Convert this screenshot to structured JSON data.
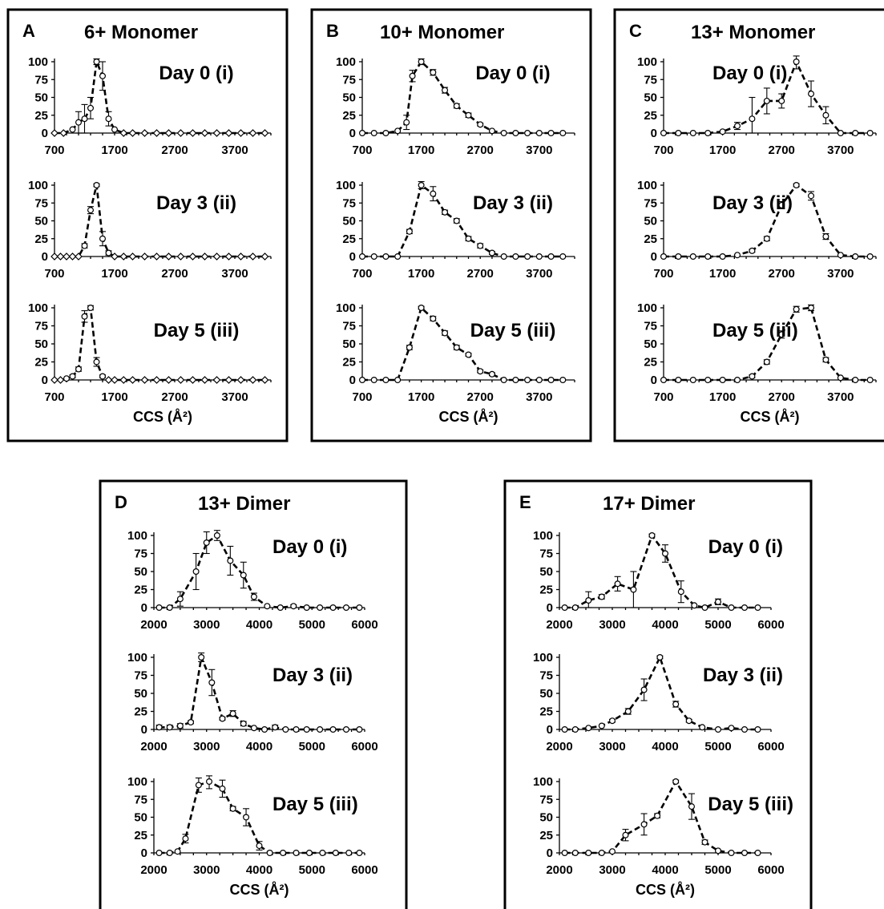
{
  "xlabel": "CCS (Å²)",
  "chart_data": [
    {
      "panel": "A",
      "title": "6+ Monomer",
      "type": "line",
      "ylim": [
        0,
        100
      ],
      "yticks": [
        0,
        25,
        50,
        75,
        100
      ],
      "xlim": [
        700,
        4300
      ],
      "xticks": [
        700,
        1700,
        2700,
        3700
      ],
      "xlabel": "CCS (Å²)",
      "subplots": [
        {
          "label": "Day 0 (i)",
          "x": [
            700,
            850,
            1000,
            1100,
            1200,
            1300,
            1400,
            1500,
            1600,
            1700,
            1850,
            2000,
            2200,
            2400,
            2600,
            2800,
            3000,
            3200,
            3400,
            3600,
            3800,
            4000,
            4200
          ],
          "y": [
            0,
            0,
            5,
            15,
            20,
            35,
            100,
            80,
            20,
            5,
            0,
            0,
            0,
            0,
            0,
            0,
            0,
            0,
            0,
            0,
            0,
            0,
            0
          ],
          "err": [
            0,
            0,
            0,
            15,
            20,
            15,
            4,
            20,
            10,
            0,
            0,
            0,
            0,
            0,
            0,
            0,
            0,
            0,
            0,
            0,
            0,
            0,
            0
          ]
        },
        {
          "label": "Day 3 (ii)",
          "x": [
            700,
            800,
            900,
            1000,
            1100,
            1200,
            1300,
            1400,
            1500,
            1600,
            1700,
            1850,
            2000,
            2200,
            2400,
            2600,
            2800,
            3000,
            3200,
            3400,
            3600,
            3800,
            4000,
            4200
          ],
          "y": [
            0,
            0,
            0,
            0,
            0,
            15,
            65,
            100,
            25,
            5,
            0,
            0,
            0,
            0,
            0,
            0,
            0,
            0,
            0,
            0,
            0,
            0,
            0,
            0
          ],
          "err": [
            0,
            0,
            0,
            0,
            0,
            3,
            5,
            2,
            10,
            3,
            0,
            0,
            0,
            0,
            0,
            0,
            0,
            0,
            0,
            0,
            0,
            0,
            0,
            0
          ]
        },
        {
          "label": "Day 5 (iii)",
          "x": [
            700,
            800,
            900,
            1000,
            1100,
            1200,
            1300,
            1400,
            1500,
            1600,
            1700,
            1850,
            2000,
            2200,
            2400,
            2600,
            2800,
            3000,
            3200,
            3400,
            3600,
            3800,
            4000,
            4200
          ],
          "y": [
            0,
            0,
            2,
            5,
            15,
            88,
            100,
            25,
            5,
            0,
            0,
            0,
            0,
            0,
            0,
            0,
            0,
            0,
            0,
            0,
            0,
            0,
            0,
            0
          ],
          "err": [
            0,
            0,
            0,
            2,
            3,
            8,
            3,
            6,
            2,
            0,
            0,
            0,
            0,
            0,
            0,
            0,
            0,
            0,
            0,
            0,
            0,
            0,
            0,
            0
          ]
        }
      ]
    },
    {
      "panel": "B",
      "title": "10+ Monomer",
      "type": "line",
      "ylim": [
        0,
        100
      ],
      "yticks": [
        0,
        25,
        50,
        75,
        100
      ],
      "xlim": [
        700,
        4300
      ],
      "xticks": [
        700,
        1700,
        2700,
        3700
      ],
      "xlabel": "CCS (Å²)",
      "subplots": [
        {
          "label": "Day 0 (i)",
          "x": [
            700,
            900,
            1100,
            1300,
            1450,
            1550,
            1700,
            1900,
            2100,
            2300,
            2500,
            2700,
            2900,
            3100,
            3300,
            3500,
            3700,
            3900,
            4100
          ],
          "y": [
            0,
            0,
            0,
            3,
            15,
            80,
            100,
            85,
            60,
            38,
            25,
            12,
            3,
            0,
            0,
            0,
            0,
            0,
            0
          ],
          "err": [
            0,
            0,
            0,
            0,
            10,
            8,
            4,
            4,
            4,
            3,
            3,
            2,
            0,
            0,
            0,
            0,
            0,
            0,
            0
          ]
        },
        {
          "label": "Day 3 (ii)",
          "x": [
            700,
            900,
            1100,
            1300,
            1500,
            1700,
            1900,
            2100,
            2300,
            2500,
            2700,
            2900,
            3100,
            3300,
            3500,
            3700,
            3900,
            4100
          ],
          "y": [
            0,
            0,
            0,
            0,
            35,
            100,
            88,
            62,
            50,
            25,
            15,
            5,
            0,
            0,
            0,
            0,
            0,
            0
          ],
          "err": [
            0,
            0,
            0,
            0,
            3,
            5,
            10,
            3,
            3,
            3,
            3,
            2,
            0,
            0,
            0,
            0,
            0,
            0
          ]
        },
        {
          "label": "Day 5 (iii)",
          "x": [
            700,
            900,
            1100,
            1300,
            1500,
            1700,
            1900,
            2100,
            2300,
            2500,
            2700,
            2900,
            3100,
            3300,
            3500,
            3700,
            3900,
            4100
          ],
          "y": [
            0,
            0,
            0,
            0,
            45,
            100,
            85,
            65,
            45,
            35,
            12,
            8,
            0,
            0,
            0,
            0,
            0,
            0
          ],
          "err": [
            0,
            0,
            0,
            0,
            3,
            2,
            3,
            3,
            3,
            2,
            2,
            2,
            0,
            0,
            0,
            0,
            0,
            0
          ]
        }
      ]
    },
    {
      "panel": "C",
      "title": "13+ Monomer",
      "type": "line",
      "ylim": [
        0,
        100
      ],
      "yticks": [
        0,
        25,
        50,
        75,
        100
      ],
      "xlim": [
        700,
        4300
      ],
      "xticks": [
        700,
        1700,
        2700,
        3700
      ],
      "xlabel": "CCS (Å²)",
      "subplots": [
        {
          "label": "Day 0 (i)",
          "x": [
            700,
            950,
            1200,
            1450,
            1700,
            1950,
            2200,
            2450,
            2700,
            2950,
            3200,
            3450,
            3700,
            3950,
            4200
          ],
          "y": [
            0,
            0,
            0,
            0,
            2,
            10,
            20,
            45,
            45,
            100,
            55,
            25,
            0,
            0,
            0
          ],
          "err": [
            0,
            0,
            0,
            0,
            0,
            5,
            30,
            18,
            10,
            10,
            18,
            12,
            0,
            0,
            0
          ]
        },
        {
          "label": "Day 3 (ii)",
          "x": [
            700,
            950,
            1200,
            1450,
            1700,
            1950,
            2200,
            2450,
            2700,
            2950,
            3200,
            3450,
            3700,
            3950,
            4200
          ],
          "y": [
            0,
            0,
            0,
            0,
            0,
            2,
            8,
            25,
            72,
            100,
            85,
            28,
            2,
            0,
            0
          ],
          "err": [
            0,
            0,
            0,
            0,
            0,
            0,
            2,
            3,
            5,
            2,
            6,
            4,
            0,
            0,
            0
          ]
        },
        {
          "label": "Day 5 (iii)",
          "x": [
            700,
            950,
            1200,
            1450,
            1700,
            1950,
            2200,
            2450,
            2700,
            2950,
            3200,
            3450,
            3700,
            3950,
            4200
          ],
          "y": [
            0,
            0,
            0,
            0,
            0,
            0,
            5,
            25,
            63,
            98,
            100,
            28,
            3,
            0,
            0
          ],
          "err": [
            0,
            0,
            0,
            0,
            0,
            0,
            2,
            3,
            5,
            4,
            4,
            3,
            0,
            0,
            0
          ]
        }
      ]
    },
    {
      "panel": "D",
      "title": "13+ Dimer",
      "type": "line",
      "ylim": [
        0,
        100
      ],
      "yticks": [
        0,
        25,
        50,
        75,
        100
      ],
      "xlim": [
        2000,
        6000
      ],
      "xticks": [
        2000,
        3000,
        4000,
        5000,
        6000
      ],
      "xlabel": "CCS (Å²)",
      "subplots": [
        {
          "label": "Day 0 (i)",
          "x": [
            2100,
            2300,
            2500,
            2800,
            3000,
            3200,
            3450,
            3700,
            3900,
            4150,
            4400,
            4650,
            4900,
            5150,
            5400,
            5650,
            5900
          ],
          "y": [
            0,
            0,
            12,
            50,
            90,
            100,
            65,
            45,
            15,
            2,
            0,
            2,
            0,
            0,
            0,
            0,
            0
          ],
          "err": [
            0,
            0,
            10,
            25,
            15,
            7,
            20,
            18,
            5,
            0,
            0,
            2,
            0,
            0,
            0,
            0,
            0
          ]
        },
        {
          "label": "Day 3 (ii)",
          "x": [
            2100,
            2300,
            2500,
            2700,
            2900,
            3100,
            3300,
            3500,
            3700,
            3900,
            4100,
            4300,
            4500,
            4700,
            4900,
            5150,
            5400,
            5650,
            5900
          ],
          "y": [
            3,
            3,
            5,
            10,
            100,
            65,
            15,
            22,
            8,
            2,
            0,
            3,
            0,
            0,
            0,
            0,
            0,
            0,
            0
          ],
          "err": [
            3,
            3,
            3,
            2,
            6,
            18,
            2,
            4,
            3,
            0,
            0,
            3,
            0,
            0,
            0,
            0,
            0,
            0,
            0
          ]
        },
        {
          "label": "Day 5 (iii)",
          "x": [
            2100,
            2300,
            2450,
            2600,
            2850,
            3050,
            3300,
            3500,
            3750,
            4000,
            4200,
            4450,
            4700,
            4950,
            5200,
            5450,
            5700,
            5900
          ],
          "y": [
            0,
            0,
            2,
            20,
            95,
            100,
            90,
            62,
            50,
            10,
            0,
            0,
            0,
            0,
            0,
            0,
            0,
            0
          ],
          "err": [
            0,
            0,
            0,
            6,
            10,
            10,
            12,
            3,
            12,
            6,
            0,
            0,
            0,
            0,
            0,
            0,
            0,
            0
          ]
        }
      ]
    },
    {
      "panel": "E",
      "title": "17+ Dimer",
      "type": "line",
      "ylim": [
        0,
        100
      ],
      "yticks": [
        0,
        25,
        50,
        75,
        100
      ],
      "xlim": [
        2000,
        6000
      ],
      "xticks": [
        2000,
        3000,
        4000,
        5000,
        6000
      ],
      "xlabel": "CCS (Å²)",
      "subplots": [
        {
          "label": "Day 0 (i)",
          "x": [
            2100,
            2300,
            2550,
            2800,
            3100,
            3400,
            3750,
            4000,
            4300,
            4550,
            4750,
            5000,
            5250,
            5500,
            5750
          ],
          "y": [
            0,
            0,
            10,
            15,
            33,
            25,
            100,
            75,
            22,
            3,
            0,
            8,
            0,
            0,
            0
          ],
          "err": [
            0,
            0,
            12,
            3,
            10,
            25,
            2,
            12,
            15,
            0,
            0,
            4,
            0,
            0,
            0
          ]
        },
        {
          "label": "Day 3 (ii)",
          "x": [
            2100,
            2300,
            2550,
            2800,
            3000,
            3300,
            3600,
            3900,
            4200,
            4450,
            4700,
            5000,
            5250,
            5500,
            5750
          ],
          "y": [
            0,
            0,
            2,
            5,
            12,
            25,
            55,
            100,
            35,
            12,
            3,
            0,
            2,
            0,
            0
          ],
          "err": [
            0,
            0,
            0,
            0,
            2,
            4,
            15,
            2,
            4,
            2,
            0,
            0,
            0,
            0,
            0
          ]
        },
        {
          "label": "Day 5 (iii)",
          "x": [
            2100,
            2300,
            2550,
            2800,
            3000,
            3250,
            3600,
            3850,
            4200,
            4500,
            4750,
            5000,
            5250,
            5500,
            5750
          ],
          "y": [
            0,
            0,
            0,
            0,
            2,
            25,
            40,
            52,
            100,
            65,
            15,
            3,
            0,
            0,
            0
          ],
          "err": [
            0,
            0,
            0,
            0,
            0,
            8,
            15,
            3,
            2,
            18,
            3,
            0,
            0,
            0,
            0
          ]
        }
      ]
    }
  ]
}
